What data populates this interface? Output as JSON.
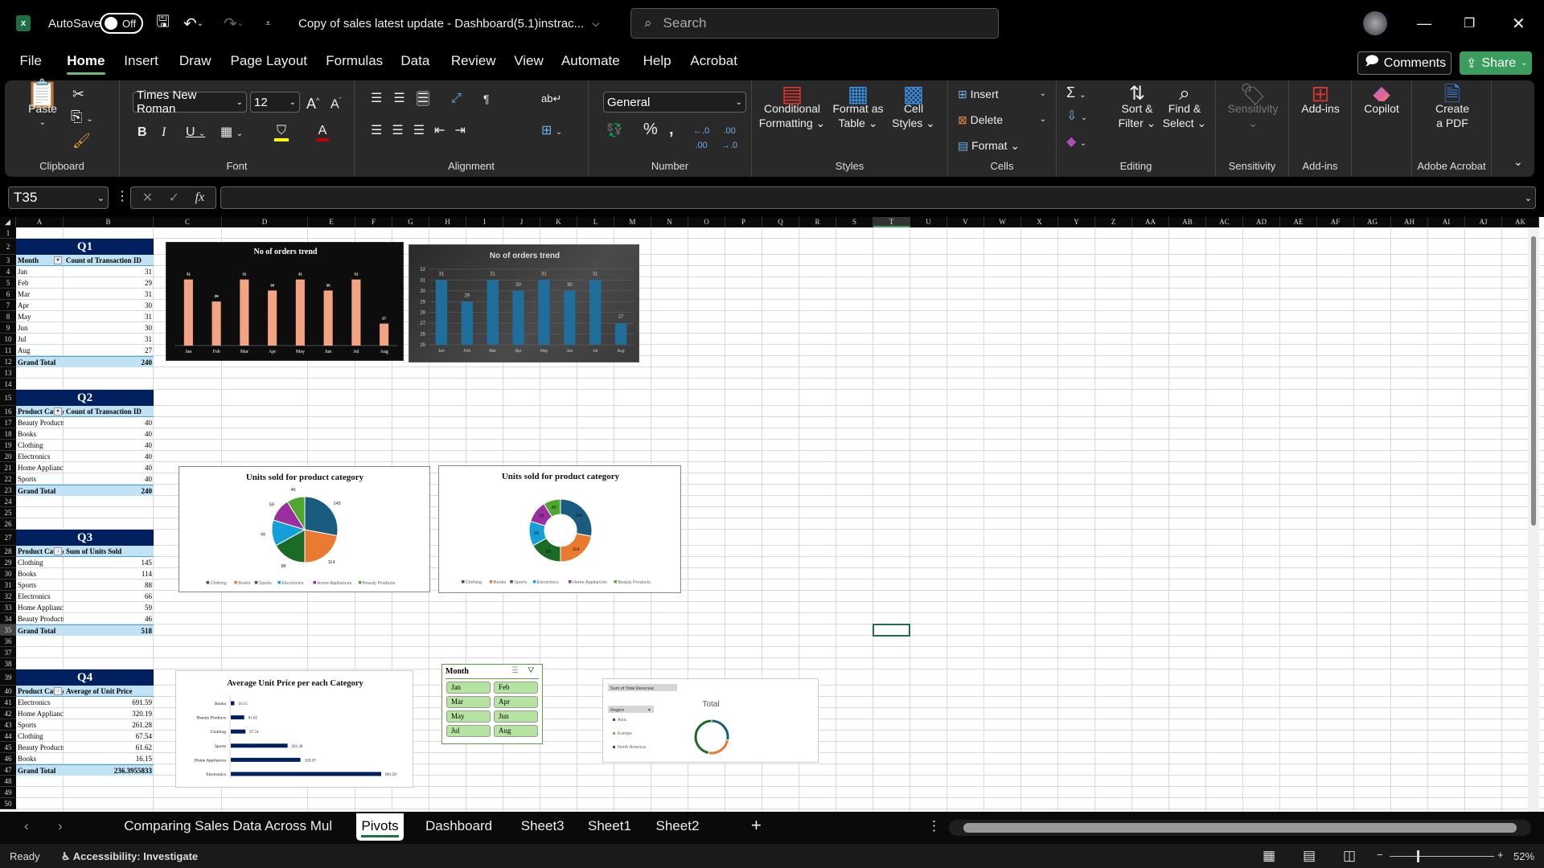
{
  "title_bar": {
    "app_icon": "excel-icon",
    "autosave_label": "AutoSave",
    "autosave_state": "Off",
    "doc_title": "Copy of sales latest update - Dashboard(5.1)instrac...",
    "search_placeholder": "Search"
  },
  "menu": {
    "tabs": [
      "File",
      "Home",
      "Insert",
      "Draw",
      "Page Layout",
      "Formulas",
      "Data",
      "Review",
      "View",
      "Automate",
      "Help",
      "Acrobat"
    ],
    "active": "Home",
    "comments": "Comments",
    "share": "Share"
  },
  "ribbon": {
    "clipboard": {
      "paste": "Paste",
      "label": "Clipboard"
    },
    "font": {
      "name": "Times New Roman",
      "size": "12",
      "label": "Font",
      "fill_color": "#ffff00",
      "font_color": "#c00000"
    },
    "alignment": {
      "label": "Alignment"
    },
    "number": {
      "format": "General",
      "label": "Number"
    },
    "styles": {
      "conditional": "Conditional",
      "conditional2": "Formatting",
      "format_as": "Format as",
      "format_as2": "Table",
      "cell": "Cell",
      "cell2": "Styles",
      "label": "Styles"
    },
    "cells": {
      "insert": "Insert",
      "delete": "Delete",
      "format": "Format",
      "label": "Cells"
    },
    "editing": {
      "sort": "Sort &",
      "sort2": "Filter",
      "find": "Find &",
      "find2": "Select",
      "label": "Editing"
    },
    "sensitivity": {
      "button": "Sensitivity",
      "label": "Sensitivity"
    },
    "addins": {
      "button": "Add-ins",
      "label": "Add-ins"
    },
    "copilot": {
      "button": "Copilot"
    },
    "acrobat": {
      "button": "Create",
      "button2": "a PDF",
      "label": "Adobe Acrobat"
    }
  },
  "formula_bar": {
    "name_box": "T35",
    "formula": "",
    "fx": "fx"
  },
  "columns": [
    "A",
    "B",
    "C",
    "D",
    "E",
    "F",
    "G",
    "H",
    "I",
    "J",
    "K",
    "L",
    "M",
    "N",
    "O",
    "P",
    "Q",
    "R",
    "S",
    "T",
    "U",
    "V",
    "W",
    "X",
    "Y",
    "Z",
    "AA",
    "AB",
    "AC",
    "AD",
    "AE",
    "AF",
    "AG",
    "AH",
    "AI",
    "AJ",
    "AK"
  ],
  "rows": [
    1,
    2,
    3,
    4,
    5,
    6,
    7,
    8,
    9,
    10,
    11,
    12,
    13,
    14,
    15,
    16,
    17,
    18,
    19,
    20,
    21,
    22,
    23,
    24,
    25,
    26,
    27,
    28,
    29,
    30,
    31,
    32,
    33,
    34,
    35,
    36,
    37,
    38,
    39,
    40,
    41,
    42,
    43,
    44,
    45,
    46,
    47,
    48,
    49,
    50
  ],
  "selected_cell": "T35",
  "pivots": [
    {
      "title": "Q1",
      "headers": [
        "Month",
        "Count of Transaction ID"
      ],
      "rows": [
        [
          "Jan",
          "31"
        ],
        [
          "Feb",
          "29"
        ],
        [
          "Mar",
          "31"
        ],
        [
          "Apr",
          "30"
        ],
        [
          "May",
          "31"
        ],
        [
          "Jun",
          "30"
        ],
        [
          "Jul",
          "31"
        ],
        [
          "Aug",
          "27"
        ]
      ],
      "total": [
        "Grand Total",
        "240"
      ]
    },
    {
      "title": "Q2",
      "headers": [
        "Product Category",
        "Count of Transaction ID"
      ],
      "rows": [
        [
          "Beauty Products",
          "40"
        ],
        [
          "Books",
          "40"
        ],
        [
          "Clothing",
          "40"
        ],
        [
          "Electronics",
          "40"
        ],
        [
          "Home Appliances",
          "40"
        ],
        [
          "Sports",
          "40"
        ]
      ],
      "total": [
        "Grand Total",
        "240"
      ]
    },
    {
      "title": "Q3",
      "headers": [
        "Product Category",
        "Sum of Units Sold"
      ],
      "rows": [
        [
          "Clothing",
          "145"
        ],
        [
          "Books",
          "114"
        ],
        [
          "Sports",
          "88"
        ],
        [
          "Electronics",
          "66"
        ],
        [
          "Home Appliances",
          "59"
        ],
        [
          "Beauty Products",
          "46"
        ]
      ],
      "total": [
        "Grand Total",
        "518"
      ]
    },
    {
      "title": "Q4",
      "headers": [
        "Product Category",
        "Average of Unit Price"
      ],
      "rows": [
        [
          "Electronics",
          "691.59"
        ],
        [
          "Home Appliances",
          "320.19"
        ],
        [
          "Sports",
          "261.28"
        ],
        [
          "Clothing",
          "67.54"
        ],
        [
          "Beauty Products",
          "61.62"
        ],
        [
          "Books",
          "16.15"
        ]
      ],
      "total": [
        "Grand Total",
        "236.3955833"
      ]
    }
  ],
  "chart_data": [
    {
      "type": "bar",
      "title": "No of orders trend",
      "categories": [
        "Jan",
        "Feb",
        "Mar",
        "Apr",
        "May",
        "Jun",
        "Jul",
        "Aug"
      ],
      "values": [
        31,
        29,
        31,
        30,
        31,
        30,
        31,
        27
      ],
      "ylim": [
        25,
        32
      ],
      "style": "dark",
      "bar_color": "#f2a482",
      "grid": false
    },
    {
      "type": "bar",
      "title": "No of orders trend",
      "categories": [
        "Jan",
        "Feb",
        "Mar",
        "Apr",
        "May",
        "Jun",
        "Jul",
        "Aug"
      ],
      "values": [
        31,
        29,
        31,
        30,
        31,
        30,
        31,
        27
      ],
      "ylim": [
        25,
        32
      ],
      "yticks": [
        25,
        26,
        27,
        28,
        29,
        30,
        31,
        32
      ],
      "style": "gray",
      "bar_color": "#1f6e9c",
      "grid": true
    },
    {
      "type": "pie",
      "title": "Units sold for product category",
      "categories": [
        "Clothing",
        "Books",
        "Sports",
        "Electronics",
        "Home Appliances",
        "Beauty Products"
      ],
      "values": [
        145,
        114,
        88,
        66,
        59,
        46
      ],
      "colors": [
        "#1a5c80",
        "#e97a30",
        "#1b6b26",
        "#149fd8",
        "#9b2fa0",
        "#4ea72e"
      ],
      "legend": "bottom"
    },
    {
      "type": "pie",
      "donut": true,
      "title": "Units sold for product category",
      "categories": [
        "Clothing",
        "Books",
        "Sports",
        "Electronics",
        "Home Appliances",
        "Beauty Products"
      ],
      "values": [
        145,
        114,
        88,
        66,
        59,
        46
      ],
      "colors": [
        "#1a5c80",
        "#e97a30",
        "#1b6b26",
        "#149fd8",
        "#9b2fa0",
        "#4ea72e"
      ],
      "legend": "bottom"
    },
    {
      "type": "bar",
      "orientation": "horizontal",
      "title": "Average Unit Price per each Category",
      "categories": [
        "Books",
        "Beauty Products",
        "Clothing",
        "Sports",
        "Home Appliances",
        "Electronics"
      ],
      "values": [
        16.15,
        61.62,
        67.54,
        261.28,
        320.19,
        691.59
      ],
      "bar_color": "#002060",
      "grid": false
    },
    {
      "type": "pie",
      "donut": true,
      "title": "Total",
      "field_button": "Sum of Total Revenue",
      "legend_field": "Region",
      "categories": [
        "Asia",
        "Europe",
        "North America"
      ],
      "values": [
        28,
        25,
        47
      ],
      "colors": [
        "#1a5c80",
        "#e97a30",
        "#1b6b26"
      ],
      "legend": "left"
    }
  ],
  "slicer": {
    "title": "Month",
    "items": [
      "Jan",
      "Feb",
      "Mar",
      "Apr",
      "May",
      "Jun",
      "Jul",
      "Aug"
    ]
  },
  "sheet_tabs": {
    "tabs": [
      "Comparing Sales Data Across Mul",
      "Pivots",
      "Dashboard",
      "Sheet3",
      "Sheet1",
      "Sheet2"
    ],
    "active": "Pivots"
  },
  "status": {
    "ready": "Ready",
    "accessibility": "Accessibility: Investigate",
    "zoom": "52%",
    "zoom_level": 52
  }
}
